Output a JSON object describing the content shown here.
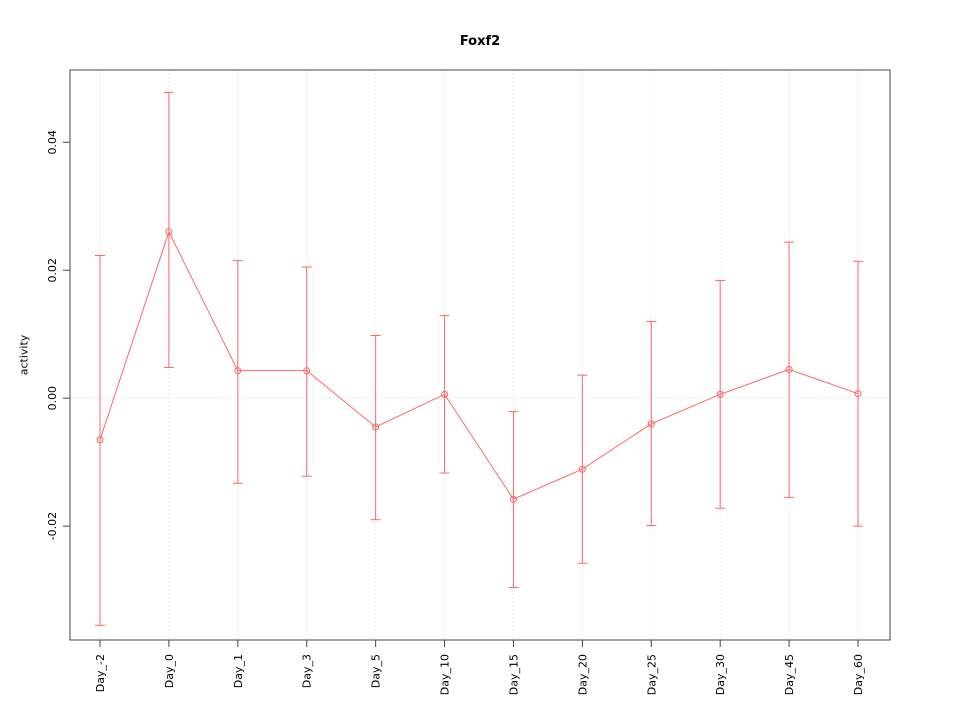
{
  "chart_data": {
    "type": "line",
    "title": "Foxf2",
    "xlabel": "",
    "ylabel": "activity",
    "categories": [
      "Day_-2",
      "Day_0",
      "Day_1",
      "Day_3",
      "Day_5",
      "Day_10",
      "Day_15",
      "Day_20",
      "Day_25",
      "Day_30",
      "Day_45",
      "Day_60"
    ],
    "series": [
      {
        "name": "activity",
        "values": [
          -0.0065,
          0.026,
          0.0043,
          0.0043,
          -0.0045,
          0.0006,
          -0.0158,
          -0.0111,
          -0.004,
          0.0006,
          0.0045,
          0.0007
        ],
        "error_high": [
          0.0223,
          0.0478,
          0.0215,
          0.0205,
          0.0098,
          0.0129,
          -0.0021,
          0.0036,
          0.012,
          0.0184,
          0.0244,
          0.0214
        ],
        "error_low": [
          -0.0355,
          0.0048,
          -0.0133,
          -0.0122,
          -0.019,
          -0.0117,
          -0.0296,
          -0.0258,
          -0.0199,
          -0.0172,
          -0.0155,
          -0.02
        ]
      }
    ],
    "yticks": [
      -0.02,
      0,
      0.02,
      0.04
    ],
    "ylim": [
      -0.0378,
      0.0513
    ],
    "grid": "dotted vertical lines at each category; dotted horizontal line at y=0",
    "legend": "none",
    "marker": "open-circle",
    "line_color": "#ff6666",
    "grid_color": "#d9d9d9",
    "axis_color": "#444444"
  }
}
